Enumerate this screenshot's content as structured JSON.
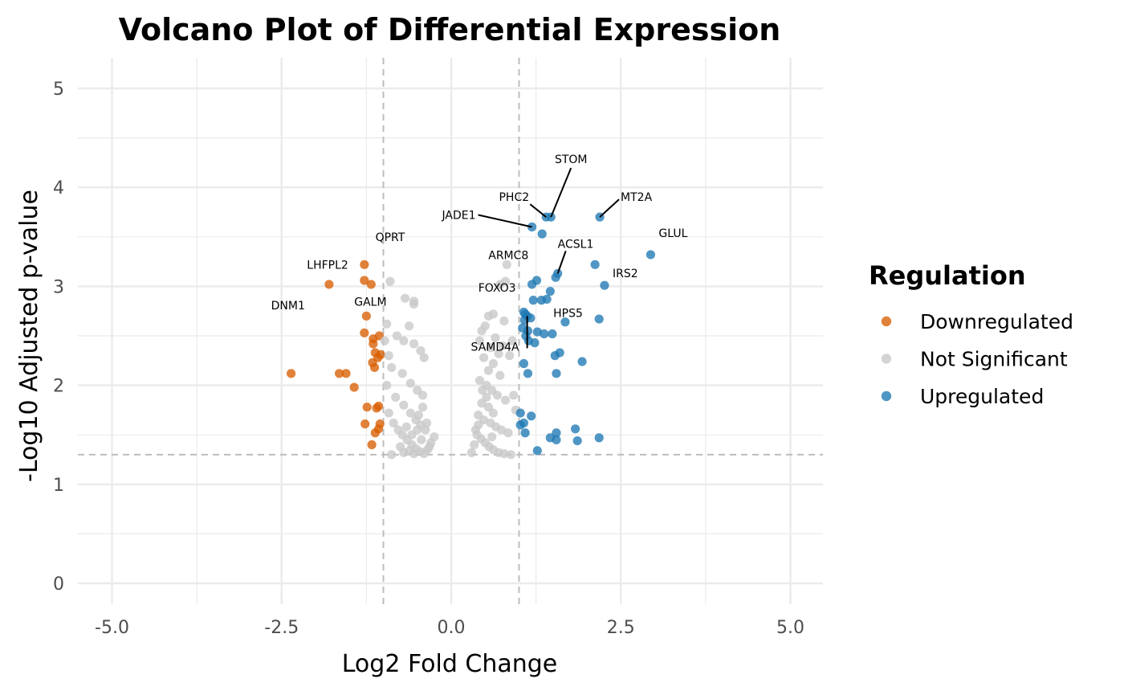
{
  "chart_data": {
    "type": "scatter",
    "title": "Volcano Plot of Differential Expression",
    "xlabel": "Log2 Fold Change",
    "ylabel": "-Log10 Adjusted p-value",
    "xlim": [
      -5.0,
      5.0
    ],
    "ylim": [
      0,
      5
    ],
    "x_ticks": [
      "-5.0",
      "-2.5",
      "0.0",
      "2.5",
      "5.0"
    ],
    "y_ticks": [
      "0",
      "1",
      "2",
      "3",
      "4",
      "5"
    ],
    "grid": true,
    "thresholds": {
      "log2fc": [
        -1,
        1
      ],
      "neg_log10_padj": 1.3
    },
    "legend": {
      "title": "Regulation",
      "position": "right",
      "entries": [
        {
          "name": "Downregulated",
          "color": "#d95f02"
        },
        {
          "name": "Not Significant",
          "color": "#c8c8c8"
        },
        {
          "name": "Upregulated",
          "color": "#1f78b4"
        }
      ]
    },
    "series": [
      {
        "name": "Downregulated",
        "color": "#d95f02",
        "points": [
          [
            -2.36,
            2.12
          ],
          [
            -1.8,
            3.02
          ],
          [
            -1.65,
            2.12
          ],
          [
            -1.55,
            2.12
          ],
          [
            -1.43,
            1.98
          ],
          [
            -1.28,
            3.22
          ],
          [
            -1.28,
            3.06
          ],
          [
            -1.18,
            3.02
          ],
          [
            -1.25,
            2.7
          ],
          [
            -1.28,
            2.53
          ],
          [
            -1.15,
            2.47
          ],
          [
            -1.15,
            2.42
          ],
          [
            -1.12,
            2.33
          ],
          [
            -1.08,
            2.28
          ],
          [
            -1.16,
            2.23
          ],
          [
            -1.13,
            2.18
          ],
          [
            -1.06,
            2.5
          ],
          [
            -1.04,
            2.31
          ],
          [
            -1.07,
            1.79
          ],
          [
            -1.1,
            1.77
          ],
          [
            -1.24,
            1.78
          ],
          [
            -1.27,
            1.61
          ],
          [
            -1.05,
            1.61
          ],
          [
            -1.07,
            1.56
          ],
          [
            -1.12,
            1.52
          ],
          [
            -1.17,
            1.4
          ]
        ]
      },
      {
        "name": "Not Significant",
        "color": "#c8c8c8",
        "points": [
          [
            -0.9,
            3.05
          ],
          [
            -0.68,
            2.88
          ],
          [
            -0.55,
            2.85
          ],
          [
            -0.55,
            2.82
          ],
          [
            -0.95,
            2.62
          ],
          [
            -0.62,
            2.6
          ],
          [
            -0.8,
            2.5
          ],
          [
            -0.7,
            2.45
          ],
          [
            -0.55,
            2.42
          ],
          [
            -0.45,
            2.35
          ],
          [
            -0.4,
            2.28
          ],
          [
            -0.98,
            2.45
          ],
          [
            -0.92,
            2.3
          ],
          [
            -0.88,
            2.18
          ],
          [
            -0.72,
            2.12
          ],
          [
            -0.6,
            2.02
          ],
          [
            -0.5,
            1.95
          ],
          [
            -0.42,
            1.9
          ],
          [
            -0.95,
            2.0
          ],
          [
            -0.82,
            1.88
          ],
          [
            -0.7,
            1.8
          ],
          [
            -0.6,
            1.72
          ],
          [
            -0.52,
            1.65
          ],
          [
            -0.45,
            1.6
          ],
          [
            -0.38,
            1.55
          ],
          [
            -0.92,
            1.72
          ],
          [
            -0.85,
            1.62
          ],
          [
            -0.78,
            1.55
          ],
          [
            -0.72,
            1.5
          ],
          [
            -0.65,
            1.45
          ],
          [
            -0.58,
            1.4
          ],
          [
            -0.52,
            1.36
          ],
          [
            -0.46,
            1.33
          ],
          [
            -0.4,
            1.31
          ],
          [
            -0.35,
            1.35
          ],
          [
            -0.3,
            1.42
          ],
          [
            -0.25,
            1.48
          ],
          [
            -0.88,
            1.3
          ],
          [
            -0.75,
            1.38
          ],
          [
            -0.66,
            1.58
          ],
          [
            -0.48,
            1.7
          ],
          [
            -0.42,
            1.78
          ],
          [
            -0.36,
            1.62
          ],
          [
            -0.58,
            1.5
          ],
          [
            -0.62,
            1.34
          ],
          [
            -0.7,
            1.32
          ],
          [
            -0.55,
            1.31
          ],
          [
            -0.5,
            1.55
          ],
          [
            -0.44,
            1.45
          ],
          [
            -0.32,
            1.38
          ],
          [
            0.82,
            3.22
          ],
          [
            0.8,
            3.05
          ],
          [
            0.72,
            3.02
          ],
          [
            0.62,
            2.72
          ],
          [
            0.55,
            2.7
          ],
          [
            0.78,
            2.65
          ],
          [
            0.5,
            2.6
          ],
          [
            0.45,
            2.55
          ],
          [
            0.65,
            2.48
          ],
          [
            0.42,
            2.45
          ],
          [
            0.58,
            2.38
          ],
          [
            0.7,
            2.32
          ],
          [
            0.48,
            2.28
          ],
          [
            0.62,
            2.22
          ],
          [
            0.55,
            2.15
          ],
          [
            0.72,
            2.1
          ],
          [
            0.42,
            2.05
          ],
          [
            0.52,
            2.0
          ],
          [
            0.6,
            1.95
          ],
          [
            0.68,
            1.9
          ],
          [
            0.8,
            1.85
          ],
          [
            0.45,
            1.82
          ],
          [
            0.55,
            1.78
          ],
          [
            0.62,
            1.72
          ],
          [
            0.4,
            1.7
          ],
          [
            0.48,
            1.65
          ],
          [
            0.58,
            1.62
          ],
          [
            0.66,
            1.58
          ],
          [
            0.74,
            1.55
          ],
          [
            0.84,
            1.52
          ],
          [
            0.38,
            1.5
          ],
          [
            0.44,
            1.46
          ],
          [
            0.5,
            1.42
          ],
          [
            0.56,
            1.38
          ],
          [
            0.62,
            1.35
          ],
          [
            0.7,
            1.32
          ],
          [
            0.78,
            1.31
          ],
          [
            0.88,
            1.3
          ],
          [
            0.3,
            1.32
          ],
          [
            0.34,
            1.4
          ],
          [
            0.36,
            1.55
          ],
          [
            0.4,
            1.6
          ],
          [
            0.92,
            1.9
          ],
          [
            0.95,
            1.75
          ],
          [
            0.9,
            2.45
          ],
          [
            0.86,
            2.3
          ],
          [
            0.76,
            2.4
          ],
          [
            0.52,
            1.88
          ],
          [
            0.46,
            1.95
          ],
          [
            0.6,
            1.48
          ]
        ]
      },
      {
        "name": "Upregulated",
        "color": "#1f78b4",
        "points": [
          [
            1.4,
            3.7
          ],
          [
            1.47,
            3.7
          ],
          [
            2.19,
            3.7
          ],
          [
            1.19,
            3.6
          ],
          [
            1.34,
            3.53
          ],
          [
            2.94,
            3.32
          ],
          [
            2.12,
            3.22
          ],
          [
            1.57,
            3.13
          ],
          [
            1.54,
            3.09
          ],
          [
            1.26,
            3.06
          ],
          [
            1.19,
            3.02
          ],
          [
            2.26,
            3.01
          ],
          [
            1.46,
            2.95
          ],
          [
            1.21,
            2.86
          ],
          [
            1.33,
            2.86
          ],
          [
            1.41,
            2.87
          ],
          [
            1.07,
            2.74
          ],
          [
            1.09,
            2.72
          ],
          [
            1.12,
            2.7
          ],
          [
            1.08,
            2.66
          ],
          [
            1.17,
            2.68
          ],
          [
            1.68,
            2.64
          ],
          [
            2.18,
            2.67
          ],
          [
            1.05,
            2.58
          ],
          [
            1.13,
            2.55
          ],
          [
            1.27,
            2.54
          ],
          [
            1.37,
            2.52
          ],
          [
            1.49,
            2.52
          ],
          [
            1.1,
            2.5
          ],
          [
            1.14,
            2.45
          ],
          [
            1.23,
            2.43
          ],
          [
            1.6,
            2.33
          ],
          [
            1.53,
            2.3
          ],
          [
            1.93,
            2.24
          ],
          [
            1.07,
            2.22
          ],
          [
            1.13,
            2.12
          ],
          [
            1.55,
            2.12
          ],
          [
            1.02,
            1.72
          ],
          [
            1.18,
            1.69
          ],
          [
            1.07,
            1.62
          ],
          [
            1.02,
            1.6
          ],
          [
            1.09,
            1.52
          ],
          [
            1.83,
            1.56
          ],
          [
            1.55,
            1.52
          ],
          [
            1.46,
            1.47
          ],
          [
            1.55,
            1.45
          ],
          [
            1.86,
            1.44
          ],
          [
            2.18,
            1.47
          ],
          [
            1.27,
            1.34
          ]
        ]
      }
    ],
    "annotations": [
      {
        "label": "STOM",
        "x": 1.47,
        "y": 3.7
      },
      {
        "label": "MT2A",
        "x": 2.19,
        "y": 3.7
      },
      {
        "label": "PHC2",
        "x": 1.4,
        "y": 3.7
      },
      {
        "label": "JADE1",
        "x": 1.19,
        "y": 3.6
      },
      {
        "label": "GLUL",
        "x": 2.94,
        "y": 3.32
      },
      {
        "label": "ACSL1",
        "x": 1.57,
        "y": 3.13
      },
      {
        "label": "IRS2",
        "x": 2.26,
        "y": 3.01
      },
      {
        "label": "ARMC8",
        "x": 0.82,
        "y": 3.22
      },
      {
        "label": "FOXO3",
        "x": 1.19,
        "y": 3.02
      },
      {
        "label": "HPS5",
        "x": 1.41,
        "y": 2.87
      },
      {
        "label": "SAMD4A",
        "x": 1.12,
        "y": 2.7
      },
      {
        "label": "QPRT",
        "x": -0.9,
        "y": 3.05
      },
      {
        "label": "LHFPL2",
        "x": -1.28,
        "y": 3.22
      },
      {
        "label": "DNM1",
        "x": -1.8,
        "y": 3.02
      },
      {
        "label": "GALM",
        "x": -1.25,
        "y": 2.7
      }
    ]
  }
}
